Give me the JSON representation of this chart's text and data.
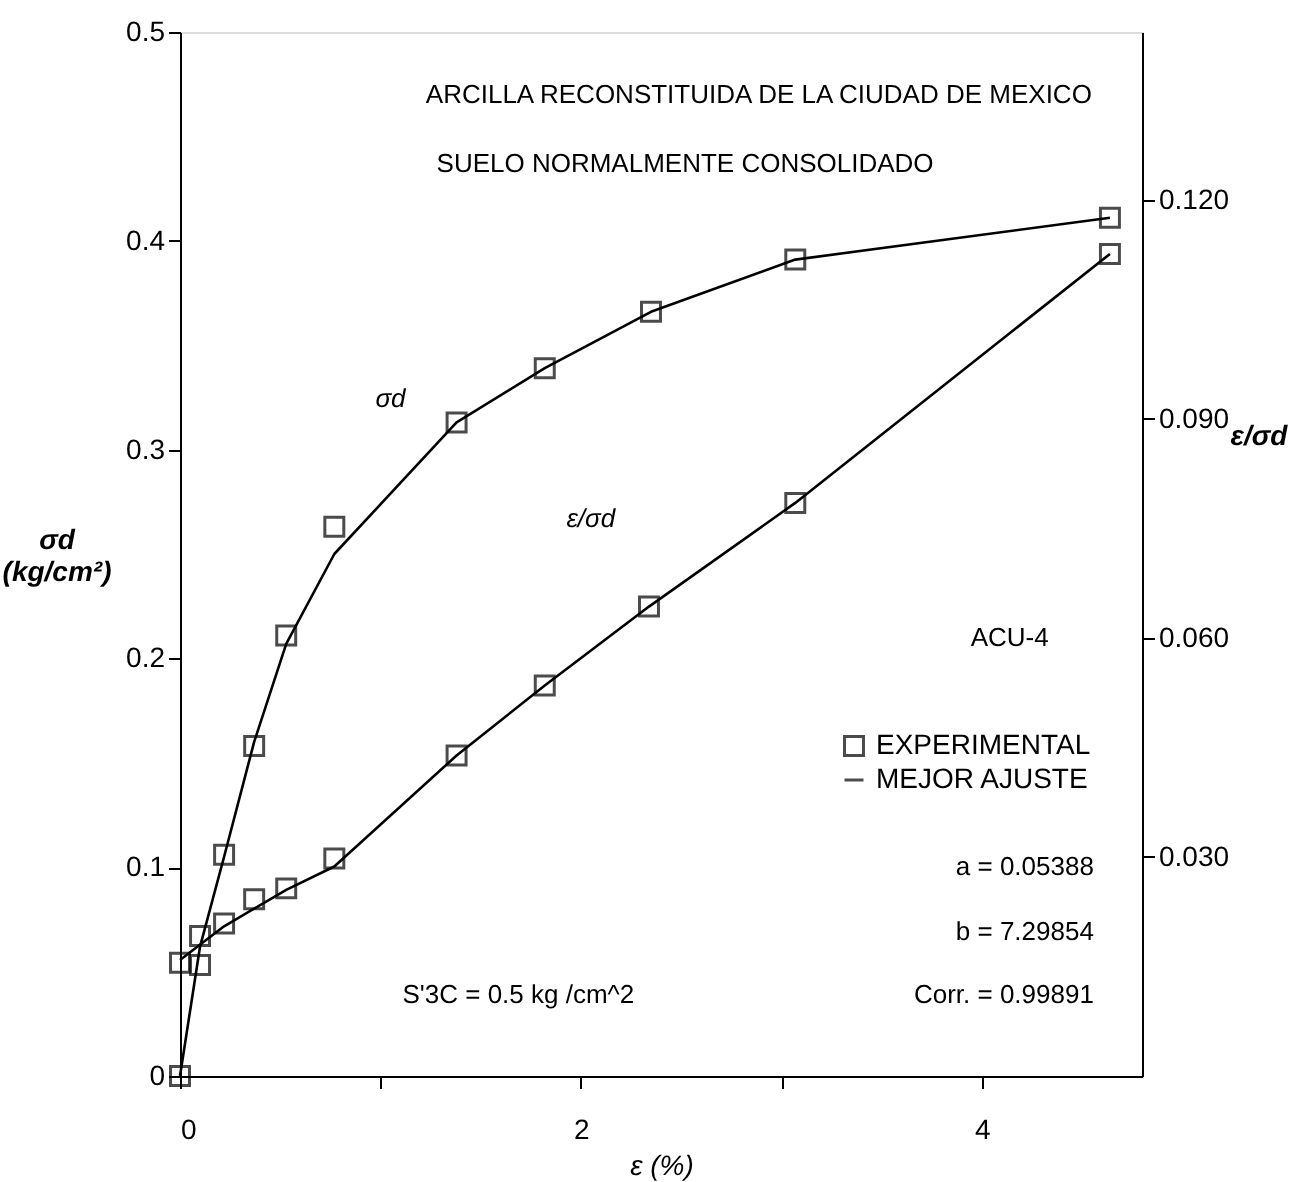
{
  "chart_data": {
    "type": "line",
    "xlabel": "ε (%)",
    "ylabel": "σd (kg/cm²)",
    "y2label": "ε/σd",
    "xlim": [
      0,
      4.8
    ],
    "xticks": [
      0,
      {
        "value": 1,
        "label": null
      },
      2,
      {
        "value": 3,
        "label": null
      },
      4
    ],
    "ylim": [
      0,
      0.5
    ],
    "yticks": [
      {
        "value": 0,
        "label": "0"
      },
      0.1,
      0.2,
      0.3,
      0.4,
      0.5
    ],
    "y2lim": [
      0,
      0.143
    ],
    "y2ticks": [
      {
        "value": 0.03,
        "label": "0.030"
      },
      {
        "value": 0.06,
        "label": "0.060"
      },
      {
        "value": 0.09,
        "label": "0.090"
      },
      {
        "value": 0.12,
        "label": "0.120"
      }
    ],
    "grid": false,
    "legend": "right",
    "series": [
      {
        "name": "EXPERIMENTAL",
        "type": "scatter",
        "marker": "square",
        "color": "#000000",
        "x": [
          0,
          0.1,
          0.22,
          0.37,
          0.53,
          0.77,
          1.38,
          1.82,
          2.35,
          3.07,
          4.64
        ],
        "values": [
          0,
          0.067,
          0.106,
          0.158,
          0.211,
          0.263,
          0.313,
          0.339,
          0.366,
          0.391,
          0.411
        ]
      },
      {
        "type": "scatter",
        "marker": "square",
        "axis": "y2",
        "color": "#000000",
        "x": [
          0,
          0.1,
          0.22,
          0.37,
          0.53,
          0.77,
          1.38,
          1.82,
          2.34,
          3.07,
          4.64
        ],
        "values": [
          0.0155,
          0.0152,
          0.0209,
          0.0242,
          0.0257,
          0.0298,
          0.0439,
          0.0535,
          0.0643,
          0.0785,
          0.1126
        ]
      },
      {
        "name": "MEJOR AJUSTE",
        "marker": "none",
        "line_style": "solid",
        "color": "#000000",
        "x": [
          0,
          0.1,
          0.22,
          0.37,
          0.53,
          0.77,
          1.38,
          1.82,
          2.35,
          3.07,
          4.64
        ],
        "values": [
          0,
          0.062,
          0.105,
          0.16,
          0.207,
          0.25,
          0.313,
          0.339,
          0.366,
          0.391,
          0.411
        ]
      },
      {
        "marker": "none",
        "line_style": "solid",
        "axis": "y2",
        "color": "#000000",
        "x": [
          0,
          0.22,
          0.53,
          0.77,
          1.38,
          1.82,
          2.34,
          3.07,
          4.64
        ],
        "values": [
          0.0159,
          0.0205,
          0.0255,
          0.0287,
          0.0439,
          0.0535,
          0.0643,
          0.0785,
          0.1126
        ]
      }
    ],
    "annotations": [
      "ARCILLA RECONSTITUIDA DE LA CIUDAD DE MEXICO",
      "SUELO NORMALMENTE CONSOLIDADO",
      "ACU-4",
      "a = 0.05388",
      "b = 7.29854",
      "Corr. = 0.99891",
      "S'3C = 0.5 kg /cm^2",
      "σd",
      "ε/σd"
    ]
  }
}
